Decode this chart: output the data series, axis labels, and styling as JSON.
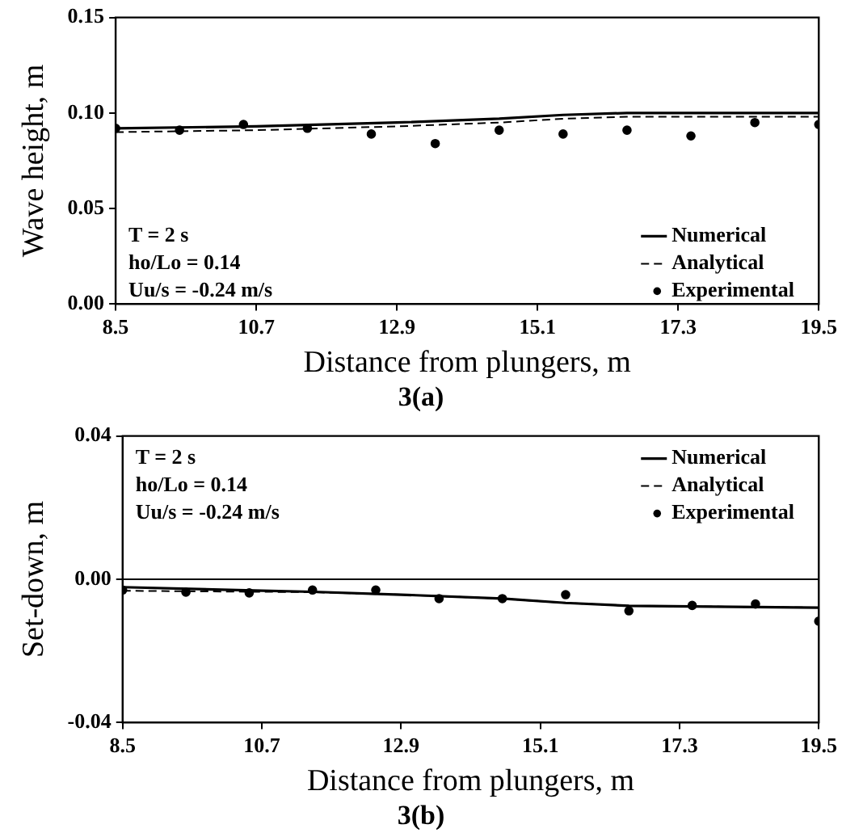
{
  "chart_data": [
    {
      "type": "line",
      "title": "3(a)",
      "xlabel": "Distance from plungers, m",
      "ylabel": "Wave height, m",
      "xlim": [
        8.5,
        19.5
      ],
      "xticks": [
        8.5,
        10.7,
        12.9,
        15.1,
        17.3,
        19.5
      ],
      "ylim": [
        0,
        0.15
      ],
      "yticks": [
        {
          "value": 0,
          "label": "0.00"
        },
        {
          "value": 0.05,
          "label": "0.05"
        },
        {
          "value": 0.1,
          "label": "0.10"
        },
        {
          "value": 0.15,
          "label": "0.15"
        }
      ],
      "grid": false,
      "legend": "bottom right",
      "annotations": [
        "T = 2 s",
        "ho/Lo = 0.14",
        "Uu/s = -0.24 m/s"
      ],
      "series": [
        {
          "name": "Numerical",
          "type": "line",
          "color": "#000000",
          "line_style": "solid",
          "marker": "none",
          "x": [
            8.5,
            10.7,
            12.9,
            14.5,
            15.5,
            16.5,
            19.5
          ],
          "values": [
            0.092,
            0.093,
            0.095,
            0.097,
            0.099,
            0.1,
            0.1
          ]
        },
        {
          "name": "Analytical",
          "type": "line",
          "color": "#000000",
          "line_style": "dashed",
          "marker": "none",
          "x": [
            8.5,
            10.7,
            12.9,
            14.5,
            15.5,
            16.5,
            19.5
          ],
          "values": [
            0.09,
            0.091,
            0.093,
            0.095,
            0.097,
            0.098,
            0.098
          ]
        },
        {
          "name": "Experimental",
          "type": "scatter",
          "color": "#000000",
          "marker": "circle",
          "x": [
            8.5,
            9.5,
            10.5,
            11.5,
            12.5,
            13.5,
            14.5,
            15.5,
            16.5,
            17.5,
            18.5,
            19.5
          ],
          "values": [
            0.092,
            0.091,
            0.094,
            0.092,
            0.089,
            0.084,
            0.091,
            0.089,
            0.091,
            0.088,
            0.095,
            0.094
          ]
        }
      ]
    },
    {
      "type": "line",
      "title": "3(b)",
      "xlabel": "Distance from plungers, m",
      "ylabel": "Set-down, m",
      "xlim": [
        8.5,
        19.5
      ],
      "xticks": [
        8.5,
        10.7,
        12.9,
        15.1,
        17.3,
        19.5
      ],
      "ylim": [
        -0.04,
        0.04
      ],
      "yticks": [
        {
          "value": -0.04,
          "label": "-0.04"
        },
        {
          "value": 0,
          "label": "0.00"
        },
        {
          "value": 0.04,
          "label": "0.04"
        }
      ],
      "grid": false,
      "legend": "top right",
      "annotations": [
        "T = 2 s",
        "ho/Lo = 0.14",
        "Uu/s = -0.24 m/s"
      ],
      "ref_lines": [
        {
          "axis": "y",
          "value": 0,
          "label": null,
          "color": "#000000"
        }
      ],
      "series": [
        {
          "name": "Numerical",
          "type": "line",
          "color": "#000000",
          "line_style": "solid",
          "marker": "none",
          "x": [
            8.5,
            10.7,
            11.5,
            12.9,
            14.5,
            15.5,
            16.5,
            19.5
          ],
          "values": [
            -0.0022,
            -0.0032,
            -0.0035,
            -0.0043,
            -0.0054,
            -0.0066,
            -0.0074,
            -0.0079
          ]
        },
        {
          "name": "Analytical",
          "type": "line",
          "color": "#000000",
          "line_style": "dashed",
          "marker": "none",
          "x": [
            8.5,
            10.7,
            11.5,
            12.9,
            14.5,
            15.5,
            16.5,
            19.5
          ],
          "values": [
            -0.0032,
            -0.0035,
            -0.0036,
            -0.0043,
            -0.0054,
            -0.0066,
            -0.0074,
            -0.0079
          ]
        },
        {
          "name": "Experimental",
          "type": "scatter",
          "color": "#000000",
          "marker": "circle",
          "x": [
            8.5,
            9.5,
            10.5,
            11.5,
            12.5,
            13.5,
            14.5,
            15.5,
            16.5,
            17.5,
            18.5,
            19.5
          ],
          "values": [
            -0.003,
            -0.0036,
            -0.0038,
            -0.003,
            -0.003,
            -0.0054,
            -0.0054,
            -0.0043,
            -0.0088,
            -0.0073,
            -0.0069,
            -0.0117
          ]
        }
      ]
    }
  ]
}
